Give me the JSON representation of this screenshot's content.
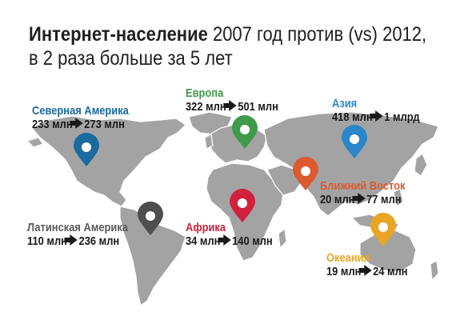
{
  "title": {
    "line1_bold": "Интернет-население",
    "line1_rest": " 2007 год против (vs) 2012,",
    "line2": "в 2 раза больше за 5 лет"
  },
  "regions": {
    "north_america": {
      "name": "Северная Америка",
      "from": "233 млн",
      "to": "273 млн",
      "color": "#1b6aa0"
    },
    "europe": {
      "name": "Европа",
      "from": "322 млн",
      "to": "501 млн",
      "color": "#3f9a4a"
    },
    "asia": {
      "name": "Азия",
      "from": "418 млн",
      "to": "1 млрд",
      "color": "#2a86c8"
    },
    "middle_east": {
      "name": "Ближний Восток",
      "from": "20 млн",
      "to": "77 млн",
      "color": "#dc5a2e"
    },
    "latin_america": {
      "name": "Латинская Америка",
      "from": "110 млн",
      "to": "236 млн",
      "color": "#4e4e4e"
    },
    "africa": {
      "name": "Африка",
      "from": "34 млн",
      "to": "140 млн",
      "color": "#d1213f"
    },
    "oceania": {
      "name": "Океания",
      "from": "19 млн",
      "to": "24 млн",
      "color": "#e9a526"
    }
  },
  "map_color": "#a3a3a3"
}
